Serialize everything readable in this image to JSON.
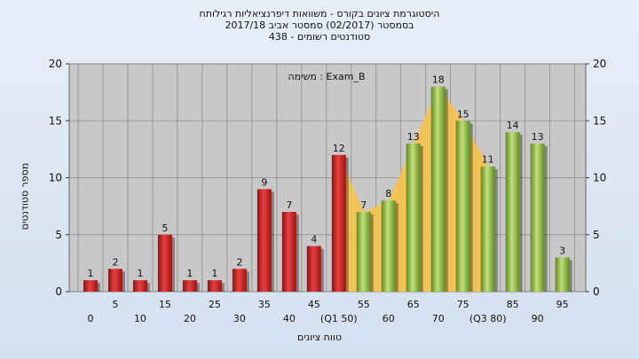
{
  "header": {
    "line1": "היסטוגרמת ציונים בקורס - משוואות דיפרנציאליות רגילותח",
    "line2": "בסמסטר  (02/2017)  סמסטר אביב 2017/18",
    "line3": "סטודנטים רשומים - 438"
  },
  "chart_data": {
    "type": "bar",
    "title": "",
    "annotation": "משימה : Exam_B",
    "xlabel": "טווח ציונים",
    "ylabel": "מספר סטודנטים",
    "ylim": [
      0,
      20
    ],
    "yticks": [
      0,
      5,
      10,
      15,
      20
    ],
    "grid": true,
    "categories": [
      0,
      5,
      10,
      15,
      20,
      25,
      30,
      35,
      40,
      45,
      50,
      55,
      60,
      65,
      70,
      75,
      80,
      85,
      90,
      95
    ],
    "x_tick_labels": [
      "0",
      "5",
      "10",
      "15",
      "20",
      "25",
      "30",
      "35",
      "40",
      "45",
      "(Q1 50)",
      "55",
      "60",
      "65",
      "70",
      "75",
      "(Q3 80)",
      "85",
      "90",
      "95"
    ],
    "values": [
      1,
      2,
      1,
      5,
      1,
      1,
      2,
      9,
      7,
      4,
      12,
      7,
      8,
      13,
      18,
      15,
      11,
      14,
      13,
      3
    ],
    "bar_colors": [
      "red",
      "red",
      "red",
      "red",
      "red",
      "red",
      "red",
      "red",
      "red",
      "red",
      "red",
      "green",
      "green",
      "green",
      "green",
      "green",
      "green",
      "green",
      "green",
      "green"
    ],
    "shaded_band": {
      "from_index": 10,
      "to_index": 16,
      "color": "#f6c24a"
    },
    "colors": {
      "red": "#cc2a2a",
      "green": "#8dbb3c",
      "plot_bg": "#c8c8c8",
      "band": "#f6c24a"
    }
  }
}
